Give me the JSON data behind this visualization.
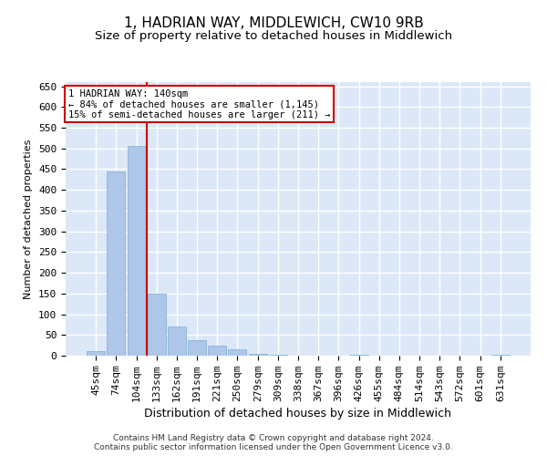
{
  "title": "1, HADRIAN WAY, MIDDLEWICH, CW10 9RB",
  "subtitle": "Size of property relative to detached houses in Middlewich",
  "xlabel": "Distribution of detached houses by size in Middlewich",
  "ylabel": "Number of detached properties",
  "categories": [
    "45sqm",
    "74sqm",
    "104sqm",
    "133sqm",
    "162sqm",
    "191sqm",
    "221sqm",
    "250sqm",
    "279sqm",
    "309sqm",
    "338sqm",
    "367sqm",
    "396sqm",
    "426sqm",
    "455sqm",
    "484sqm",
    "514sqm",
    "543sqm",
    "572sqm",
    "601sqm",
    "631sqm"
  ],
  "values": [
    10,
    445,
    505,
    150,
    70,
    38,
    25,
    15,
    5,
    2,
    0,
    0,
    0,
    2,
    0,
    0,
    0,
    0,
    0,
    0,
    2
  ],
  "bar_color": "#aec6e8",
  "bar_edge_color": "#7aafd4",
  "vline_color": "#cc0000",
  "vline_x_index": 2.5,
  "annotation_text": "1 HADRIAN WAY: 140sqm\n← 84% of detached houses are smaller (1,145)\n15% of semi-detached houses are larger (211) →",
  "annotation_box_color": "#ffffff",
  "annotation_box_edge": "#cc0000",
  "ylim": [
    0,
    660
  ],
  "yticks": [
    0,
    50,
    100,
    150,
    200,
    250,
    300,
    350,
    400,
    450,
    500,
    550,
    600,
    650
  ],
  "background_color": "#dce8f8",
  "grid_color": "#ffffff",
  "footer_text": "Contains HM Land Registry data © Crown copyright and database right 2024.\nContains public sector information licensed under the Open Government Licence v3.0.",
  "title_fontsize": 11,
  "subtitle_fontsize": 9.5,
  "xlabel_fontsize": 9,
  "ylabel_fontsize": 8,
  "tick_fontsize": 8,
  "annot_fontsize": 7.5
}
